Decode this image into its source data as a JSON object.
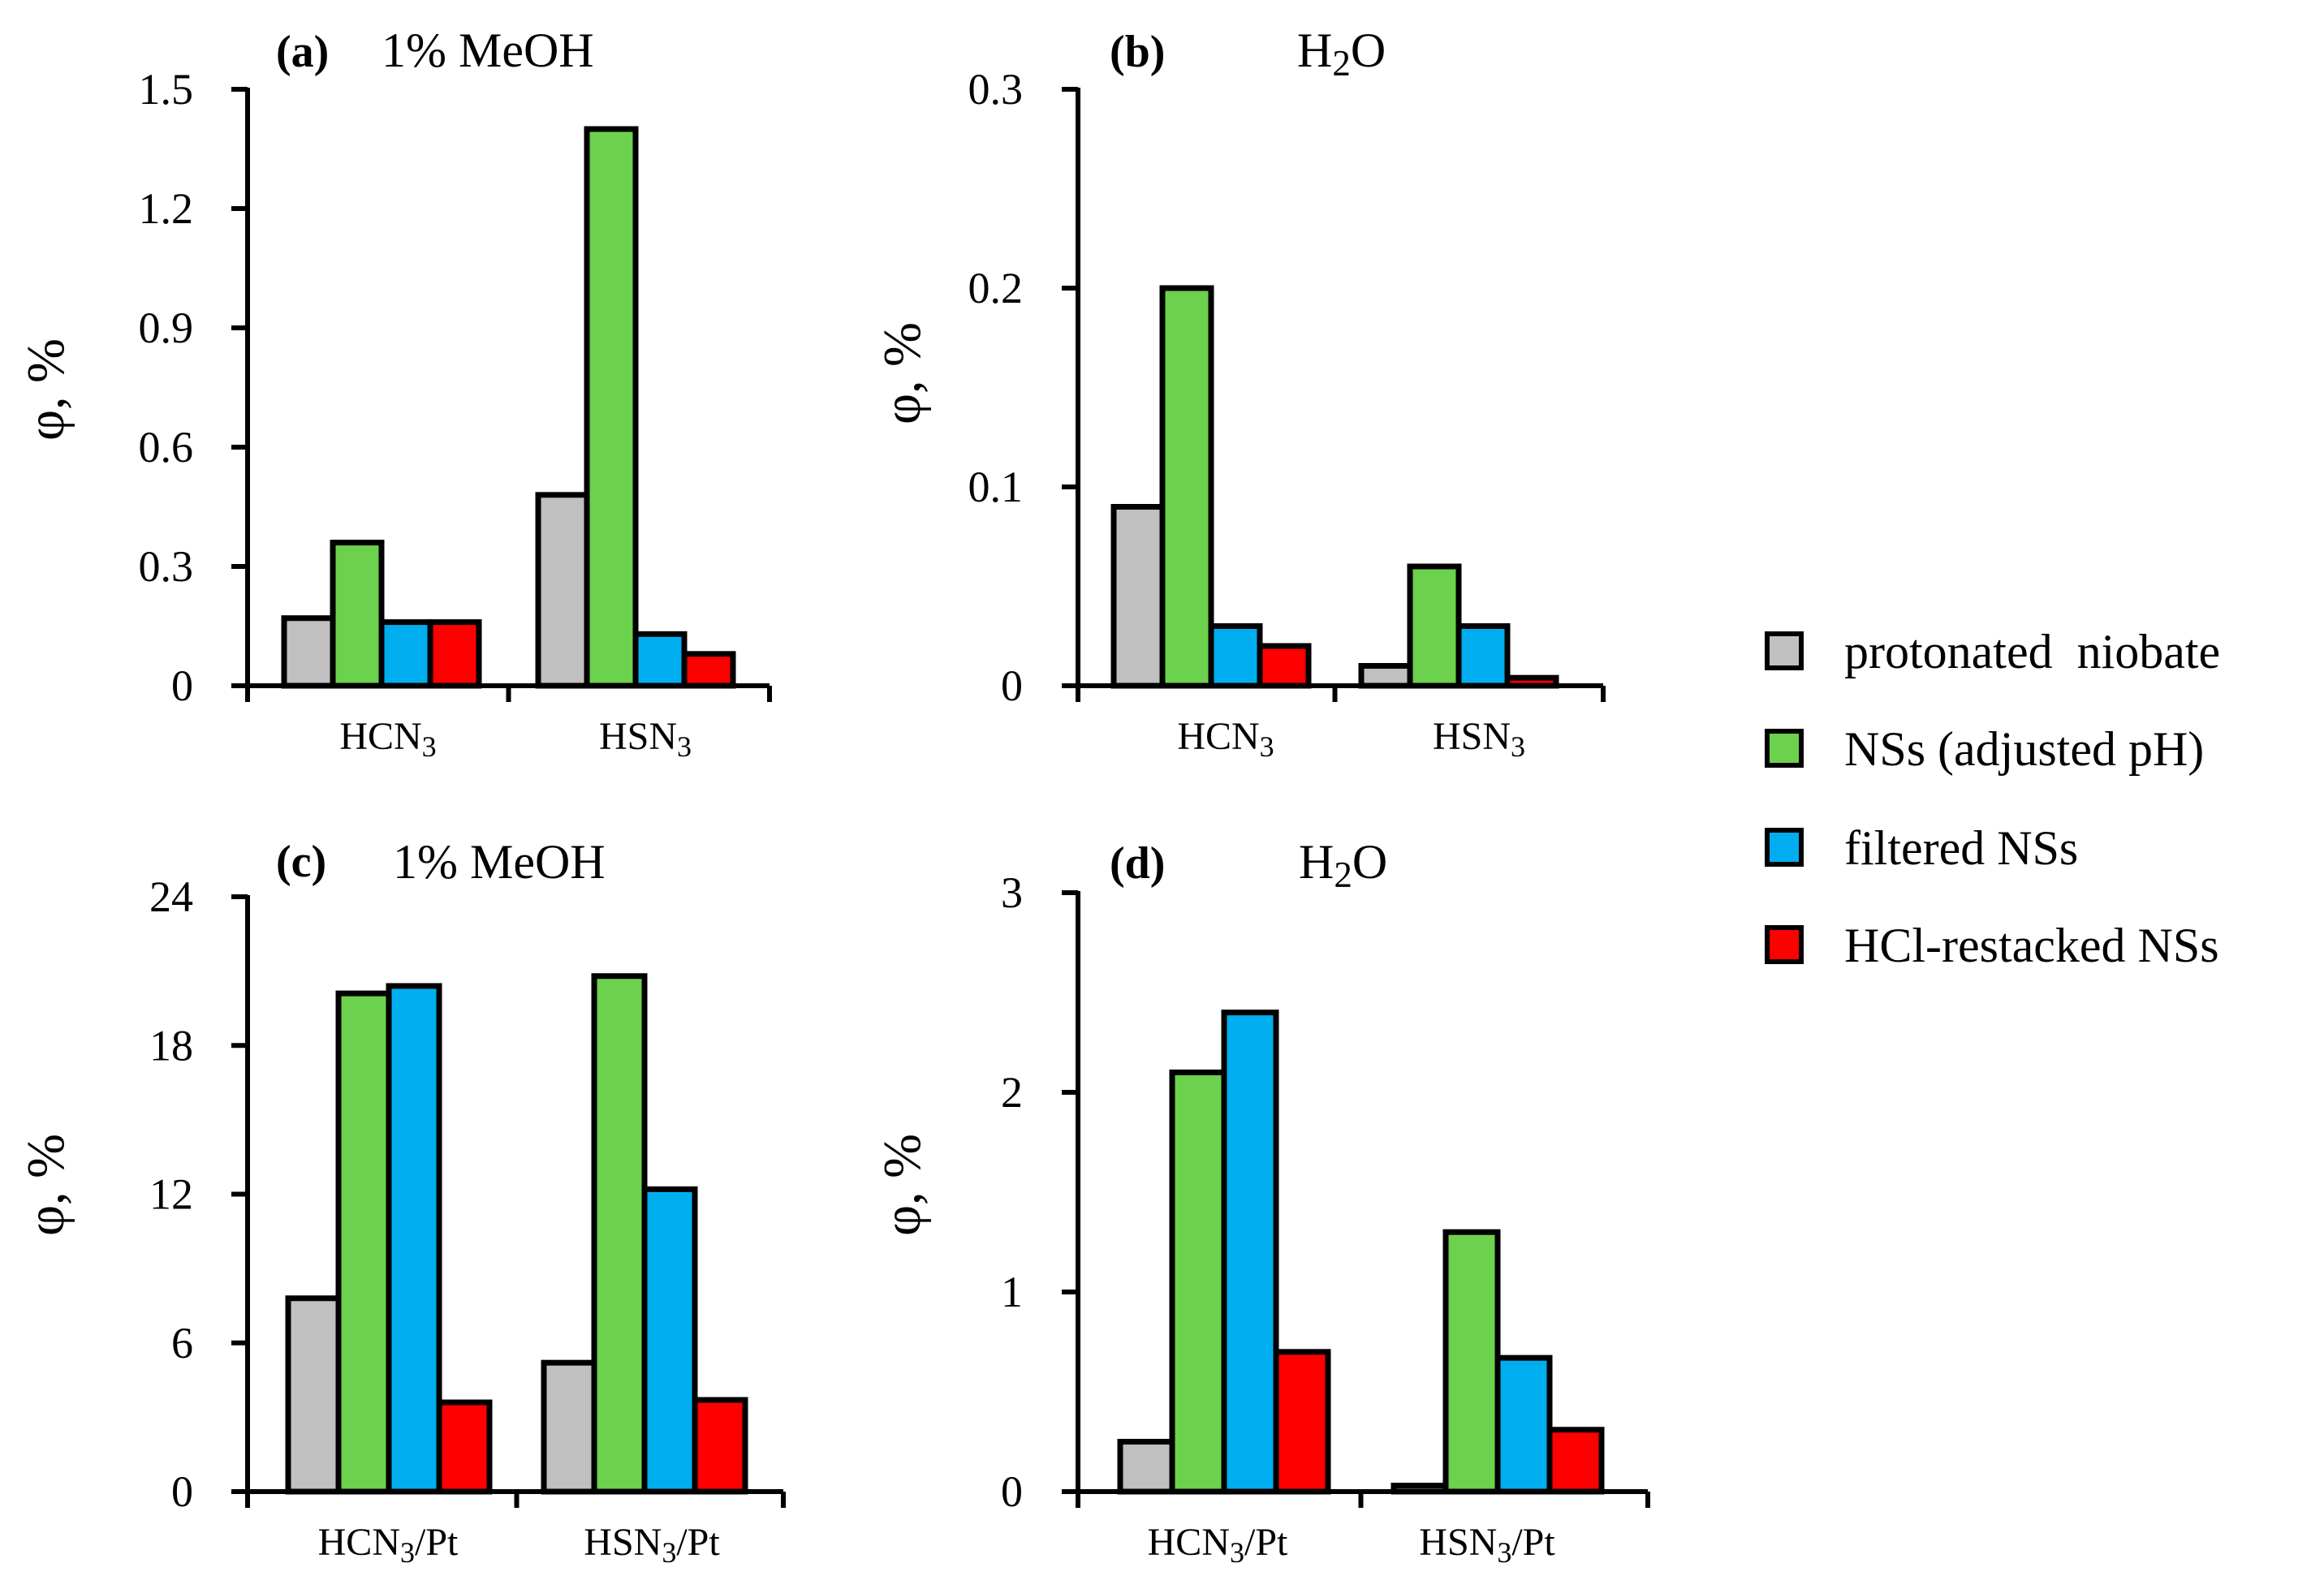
{
  "legend": {
    "items": [
      {
        "label": "protonated  niobate",
        "color": "#c0c0c0"
      },
      {
        "label": "NSs (adjusted pH)",
        "color": "#6cd14c"
      },
      {
        "label": "filtered NSs",
        "color": "#00aeef"
      },
      {
        "label": "HCl-restacked NSs",
        "color": "#ff0000"
      }
    ]
  },
  "chart_data": [
    {
      "type": "bar",
      "panel": "(a)",
      "condition": "1% MeOH",
      "ylabel": "φ, %",
      "ylim": [
        0,
        1.5
      ],
      "yticks": [
        "0",
        "0.3",
        "0.6",
        "0.9",
        "1.2",
        "1.5"
      ],
      "categories": [
        {
          "base": "HCN",
          "sub": "3",
          "suffix": ""
        },
        {
          "base": "HSN",
          "sub": "3",
          "suffix": ""
        }
      ],
      "series": [
        {
          "name": "protonated  niobate",
          "values": [
            0.17,
            0.48
          ]
        },
        {
          "name": "NSs (adjusted pH)",
          "values": [
            0.36,
            1.4
          ]
        },
        {
          "name": "filtered NSs",
          "values": [
            0.16,
            0.13
          ]
        },
        {
          "name": "HCl-restacked NSs",
          "values": [
            0.16,
            0.08
          ]
        }
      ]
    },
    {
      "type": "bar",
      "panel": "(b)",
      "condition": {
        "base": "H",
        "sub": "2",
        "suffix": "O"
      },
      "ylabel": "φ, %",
      "ylim": [
        0,
        0.3
      ],
      "yticks": [
        "0",
        "0.1",
        "0.2",
        "0.3"
      ],
      "categories": [
        {
          "base": "HCN",
          "sub": "3",
          "suffix": ""
        },
        {
          "base": "HSN",
          "sub": "3",
          "suffix": ""
        }
      ],
      "series": [
        {
          "name": "protonated  niobate",
          "values": [
            0.09,
            0.01
          ]
        },
        {
          "name": "NSs (adjusted pH)",
          "values": [
            0.2,
            0.06
          ]
        },
        {
          "name": "filtered NSs",
          "values": [
            0.03,
            0.03
          ]
        },
        {
          "name": "HCl-restacked NSs",
          "values": [
            0.02,
            0.004
          ]
        }
      ]
    },
    {
      "type": "bar",
      "panel": "(c)",
      "condition": "1% MeOH",
      "ylabel": "φ, %",
      "ylim": [
        0,
        24
      ],
      "yticks": [
        "0",
        "6",
        "12",
        "18",
        "24"
      ],
      "categories": [
        {
          "base": "HCN",
          "sub": "3",
          "suffix": "/Pt"
        },
        {
          "base": "HSN",
          "sub": "3",
          "suffix": "/Pt"
        }
      ],
      "series": [
        {
          "name": "protonated  niobate",
          "values": [
            7.8,
            5.2
          ]
        },
        {
          "name": "NSs (adjusted pH)",
          "values": [
            20.1,
            20.8
          ]
        },
        {
          "name": "filtered NSs",
          "values": [
            20.4,
            12.2
          ]
        },
        {
          "name": "HCl-restacked NSs",
          "values": [
            3.6,
            3.7
          ]
        }
      ]
    },
    {
      "type": "bar",
      "panel": "(d)",
      "condition": {
        "base": "H",
        "sub": "2",
        "suffix": "O"
      },
      "ylabel": "φ, %",
      "ylim": [
        0,
        3
      ],
      "yticks": [
        "0",
        "1",
        "2",
        "3"
      ],
      "categories": [
        {
          "base": "HCN",
          "sub": "3",
          "suffix": "/Pt"
        },
        {
          "base": "HSN",
          "sub": "3",
          "suffix": "/Pt"
        }
      ],
      "series": [
        {
          "name": "protonated  niobate",
          "values": [
            0.25,
            0.03
          ]
        },
        {
          "name": "NSs (adjusted pH)",
          "values": [
            2.1,
            1.3
          ]
        },
        {
          "name": "filtered NSs",
          "values": [
            2.4,
            0.67
          ]
        },
        {
          "name": "HCl-restacked NSs",
          "values": [
            0.7,
            0.31
          ]
        }
      ]
    }
  ]
}
